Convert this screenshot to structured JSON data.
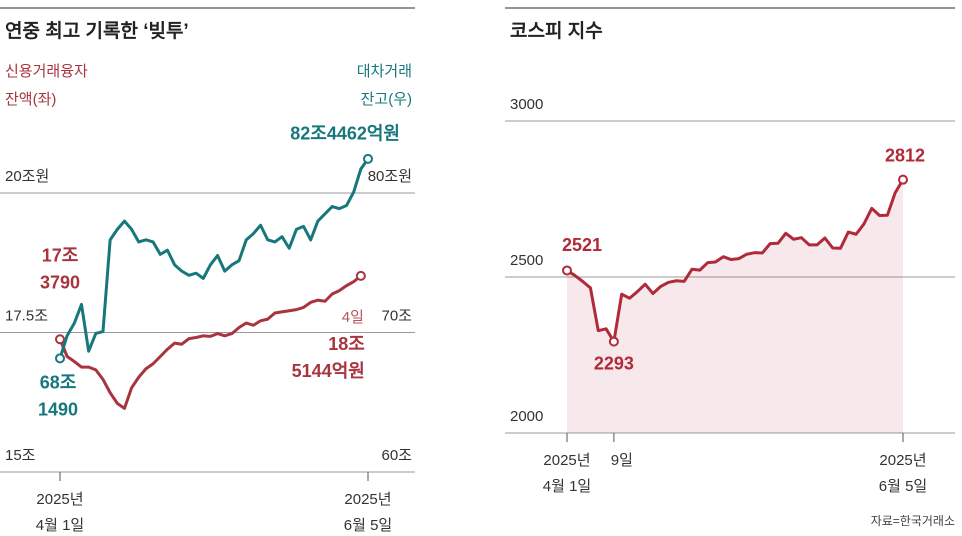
{
  "chart_data": [
    {
      "type": "line",
      "title": "연중 최고 기록한 ‘빚투’",
      "categories": [
        "2025년\n4월 1일",
        null,
        null,
        null,
        null,
        null,
        null,
        null,
        null,
        null,
        null,
        null,
        null,
        null,
        null,
        null,
        null,
        null,
        null,
        null,
        null,
        null,
        null,
        null,
        null,
        null,
        null,
        null,
        null,
        null,
        null,
        null,
        null,
        null,
        null,
        null,
        null,
        null,
        null,
        null,
        null,
        null,
        null,
        "2025년\n6월 5일"
      ],
      "ylim": [
        15,
        20
      ],
      "yticks": [
        {
          "value": 15,
          "label": "15조"
        },
        {
          "value": 17.5,
          "label": "17.5조"
        },
        {
          "value": 20,
          "label": "20조원"
        }
      ],
      "y2lim": [
        60,
        80
      ],
      "y2ticks": [
        {
          "value": 60,
          "label": "60조"
        },
        {
          "value": 70,
          "label": "70조"
        },
        {
          "value": 80,
          "label": "80조원"
        }
      ],
      "grid": true,
      "series": [
        {
          "name": "신용거래융자\n잔액(좌)",
          "color": "#a8343f",
          "values": [
            17.379,
            17.07,
            16.98,
            16.88,
            16.88,
            16.83,
            16.66,
            16.42,
            16.23,
            16.14,
            16.51,
            16.7,
            16.85,
            16.94,
            17.07,
            17.2,
            17.31,
            17.29,
            17.39,
            17.41,
            17.44,
            17.43,
            17.48,
            17.44,
            17.48,
            17.59,
            17.67,
            17.63,
            17.71,
            17.74,
            17.85,
            17.87,
            17.89,
            17.91,
            17.95,
            18.04,
            18.08,
            18.06,
            18.19,
            18.25,
            18.34,
            18.41,
            18.5144,
            null
          ],
          "value_labels": [
            "17조\n3790",
            null,
            null,
            null,
            null,
            null,
            null,
            null,
            null,
            null,
            null,
            null,
            null,
            null,
            null,
            null,
            null,
            null,
            null,
            null,
            null,
            null,
            null,
            null,
            null,
            null,
            null,
            null,
            null,
            null,
            null,
            null,
            null,
            null,
            null,
            null,
            null,
            null,
            null,
            null,
            null,
            null,
            "18조\n5144억원",
            null
          ]
        },
        {
          "name": "대차거래\n잔고(우)",
          "color": "#16787c",
          "axis": "y2",
          "values": [
            68.149,
            69.78,
            70.67,
            72.01,
            68.66,
            69.93,
            70.07,
            76.64,
            77.39,
            77.99,
            77.39,
            76.49,
            76.64,
            76.49,
            75.6,
            75.9,
            74.85,
            74.4,
            74.1,
            74.25,
            73.88,
            74.85,
            75.52,
            74.4,
            74.85,
            75.15,
            76.64,
            77.09,
            77.69,
            76.64,
            76.49,
            76.87,
            76.04,
            77.39,
            77.61,
            76.64,
            77.99,
            78.51,
            79.03,
            78.88,
            79.1,
            80.07,
            81.72,
            82.4462
          ],
          "value_labels": [
            "68조\n1490",
            null,
            null,
            null,
            null,
            null,
            null,
            null,
            null,
            null,
            null,
            null,
            null,
            null,
            null,
            null,
            null,
            null,
            null,
            null,
            null,
            null,
            null,
            null,
            null,
            null,
            null,
            null,
            null,
            null,
            null,
            null,
            null,
            null,
            null,
            null,
            null,
            null,
            null,
            null,
            null,
            null,
            null,
            "82조4462억원"
          ]
        }
      ],
      "annotations": [
        {
          "text": "4일"
        }
      ]
    },
    {
      "type": "area",
      "title": "코스피 지수",
      "categories": [
        "2025년\n4월 1일",
        null,
        null,
        null,
        null,
        null,
        "9일",
        null,
        null,
        null,
        null,
        null,
        null,
        null,
        null,
        null,
        null,
        null,
        null,
        null,
        null,
        null,
        null,
        null,
        null,
        null,
        null,
        null,
        null,
        null,
        null,
        null,
        null,
        null,
        null,
        null,
        null,
        null,
        null,
        null,
        null,
        null,
        null,
        "2025년\n6월 5일"
      ],
      "ylim": [
        2000,
        3000
      ],
      "yticks": [
        2000,
        2500,
        3000
      ],
      "grid": true,
      "series": [
        {
          "name": "코스피 지수",
          "color": "#b02a3a",
          "values": [
            2521,
            2505,
            2486,
            2465,
            2328,
            2334,
            2293,
            2445,
            2432,
            2453,
            2477,
            2447,
            2470,
            2483,
            2488,
            2486,
            2525,
            2522,
            2546,
            2548,
            2565,
            2556,
            2559,
            2573,
            2578,
            2577,
            2607,
            2608,
            2640,
            2621,
            2626,
            2603,
            2603,
            2625,
            2593,
            2592,
            2644,
            2637,
            2670,
            2720,
            2697,
            2698,
            2770,
            2812
          ],
          "value_labels": [
            "2521",
            null,
            null,
            null,
            null,
            null,
            "2293",
            null,
            null,
            null,
            null,
            null,
            null,
            null,
            null,
            null,
            null,
            null,
            null,
            null,
            null,
            null,
            null,
            null,
            null,
            null,
            null,
            null,
            null,
            null,
            null,
            null,
            null,
            null,
            null,
            null,
            null,
            null,
            null,
            null,
            null,
            null,
            null,
            "2812"
          ]
        }
      ]
    }
  ],
  "source": "자료=한국거래소"
}
